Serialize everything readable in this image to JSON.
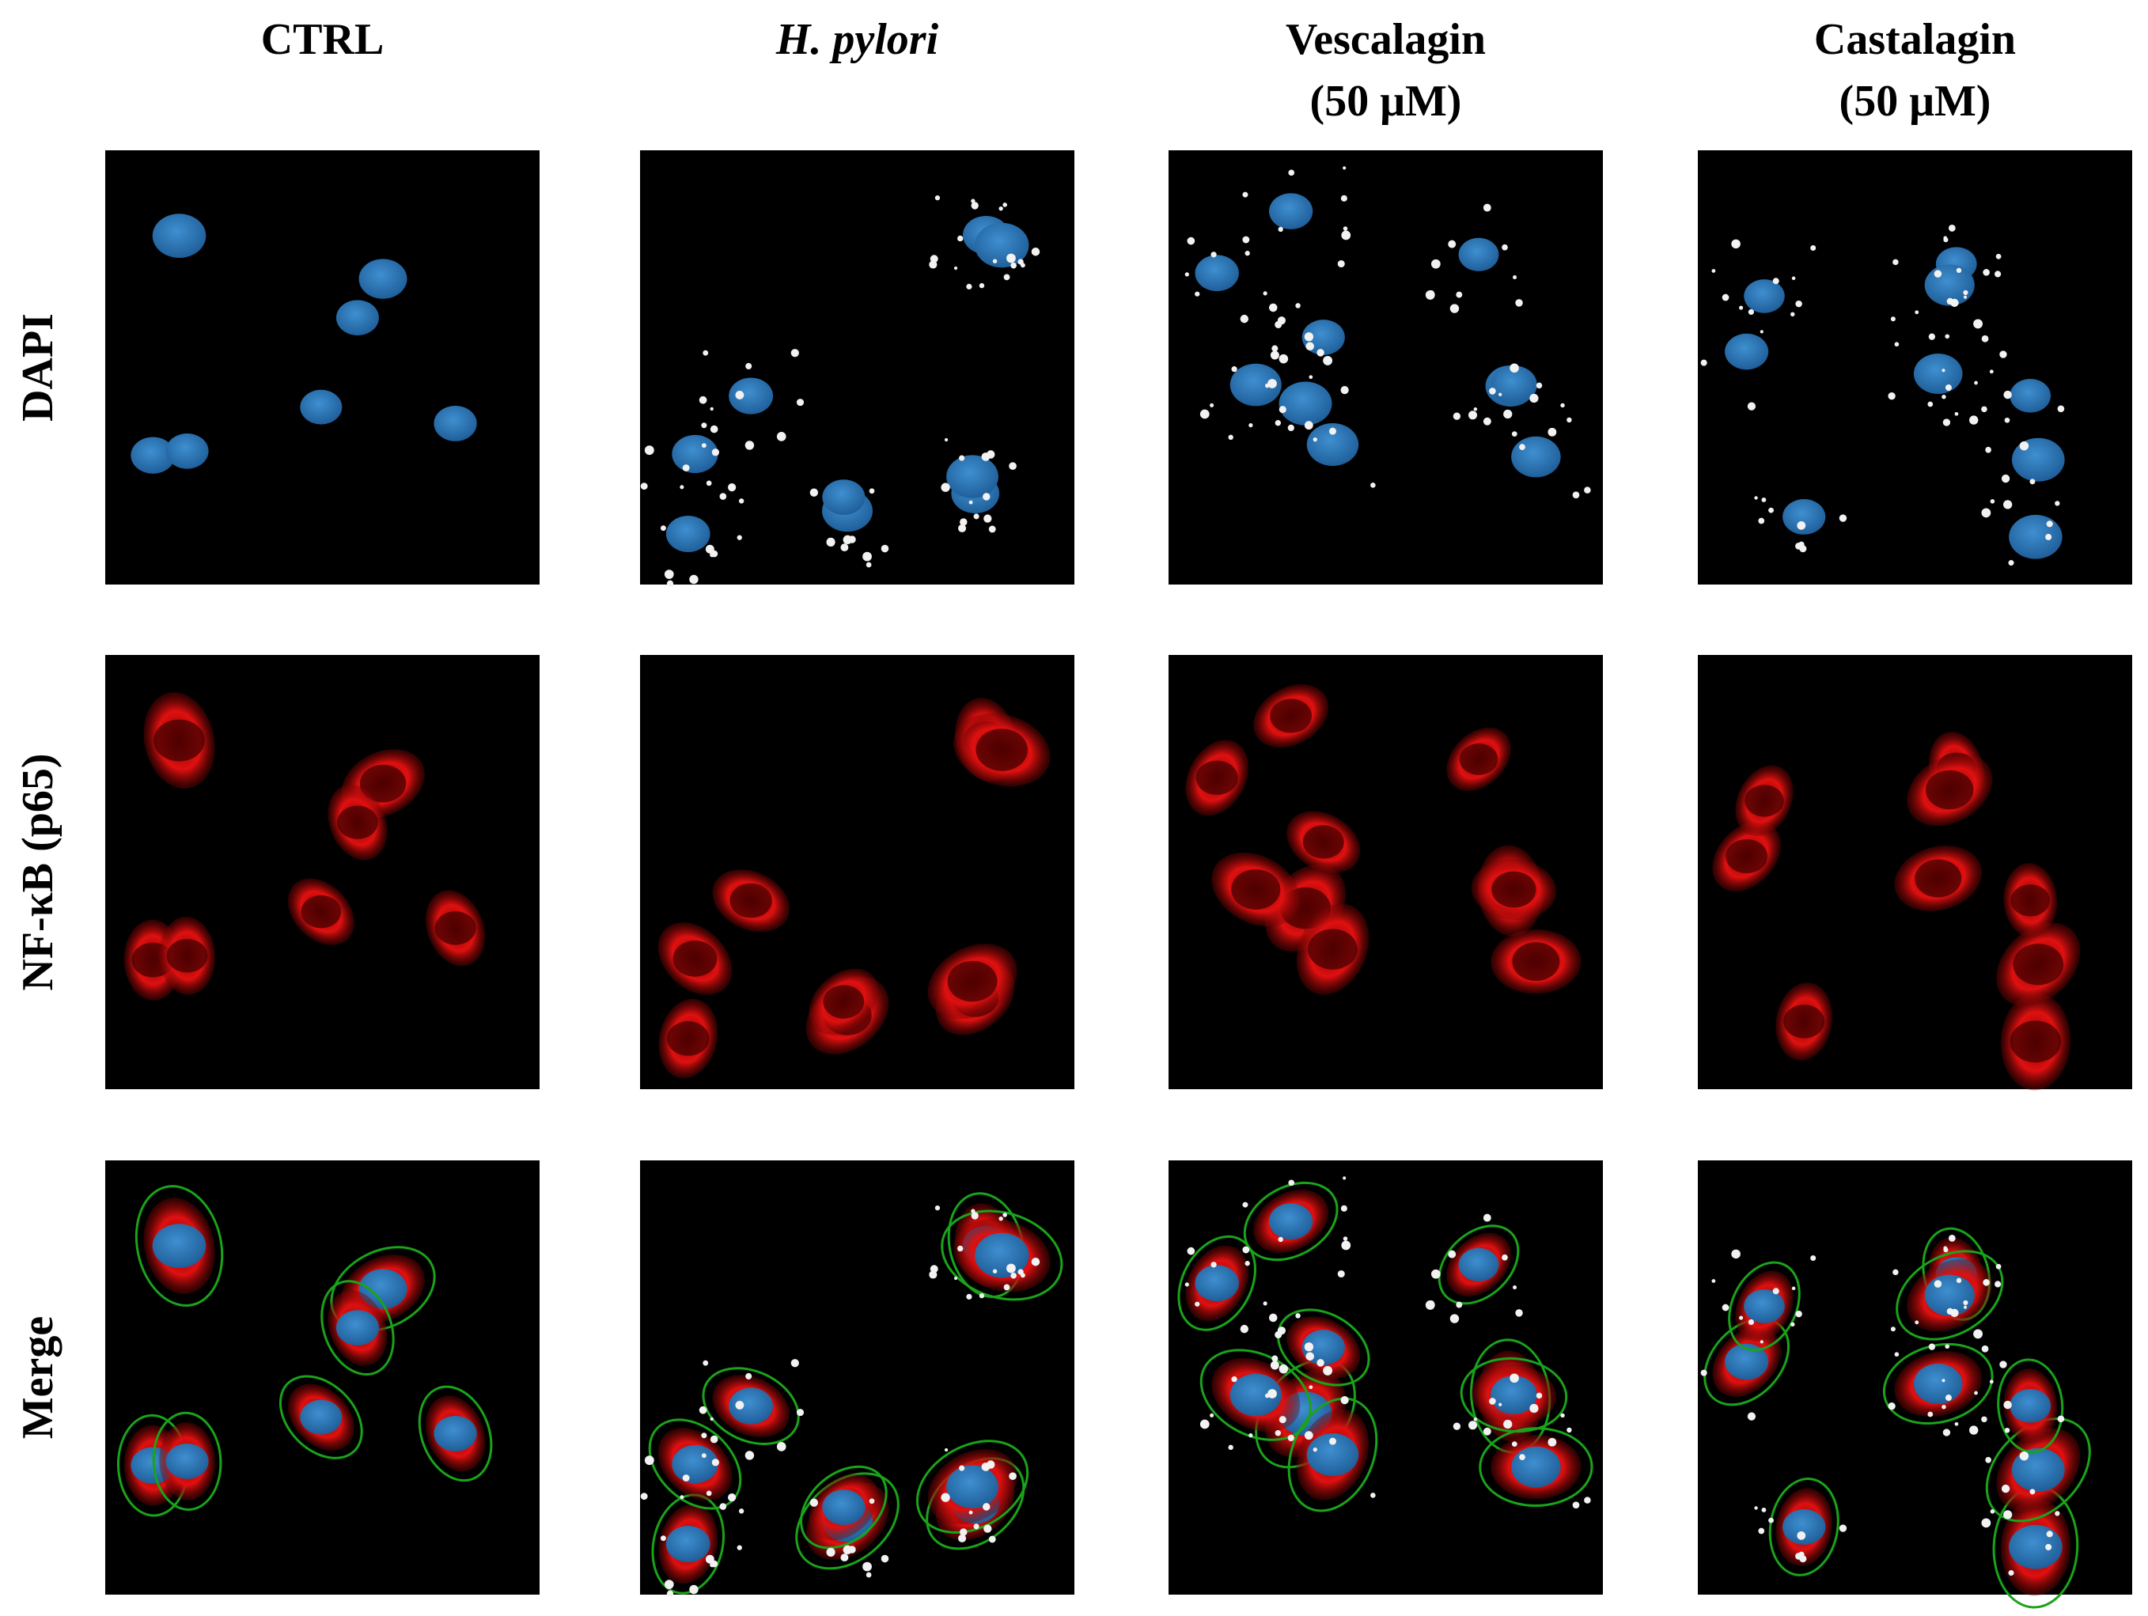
{
  "columns": [
    {
      "title": "CTRL"
    },
    {
      "title": "H. pylori"
    },
    {
      "title": "Vescalagin",
      "subtitle": "(50 μM)"
    },
    {
      "title": "Castalagin",
      "subtitle": "(50 μM)"
    }
  ],
  "rows": [
    "DAPI",
    "NF-κB (p65)",
    "Merge"
  ]
}
